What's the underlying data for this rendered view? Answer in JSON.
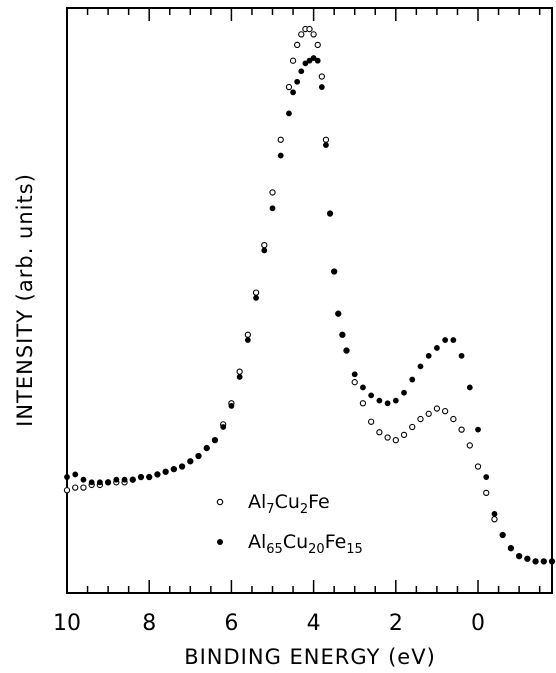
{
  "chart_data": {
    "type": "scatter",
    "xlabel": "BINDING ENERGY (eV)",
    "ylabel": "INTENSITY (arb. units)",
    "xlim": [
      10,
      -1.8
    ],
    "ylim": [
      -0.3,
      10.8
    ],
    "x_reversed": true,
    "grid": false,
    "legend_position": "bottom-center",
    "x_ticks": [
      "10",
      "8",
      "6",
      "4",
      "2",
      "0"
    ],
    "x_tick_values": [
      10,
      8,
      6,
      4,
      2,
      0
    ],
    "series": [
      {
        "name_main": [
          "Al",
          "Cu",
          "Fe"
        ],
        "name_subs": [
          "7",
          "2",
          ""
        ],
        "marker": "open-circle",
        "x": [
          10.0,
          9.8,
          9.6,
          9.4,
          9.2,
          9.0,
          8.8,
          8.6,
          8.4,
          8.2,
          8.0,
          7.8,
          7.6,
          7.4,
          7.2,
          7.0,
          6.8,
          6.6,
          6.4,
          6.2,
          6.0,
          5.8,
          5.6,
          5.4,
          5.2,
          5.0,
          4.8,
          4.6,
          4.5,
          4.4,
          4.3,
          4.2,
          4.1,
          4.0,
          3.9,
          3.8,
          3.7,
          3.6,
          3.5,
          3.4,
          3.3,
          3.2,
          3.0,
          2.8,
          2.6,
          2.4,
          2.2,
          2.0,
          1.8,
          1.6,
          1.4,
          1.2,
          1.0,
          0.8,
          0.6,
          0.4,
          0.2,
          0.0,
          -0.2,
          -0.4,
          -0.6,
          -0.8,
          -1.0,
          -1.2,
          -1.4,
          -1.6,
          -1.8
        ],
        "y": [
          1.65,
          1.7,
          1.7,
          1.75,
          1.75,
          1.8,
          1.8,
          1.8,
          1.85,
          1.9,
          1.9,
          1.95,
          2.0,
          2.05,
          2.1,
          2.2,
          2.3,
          2.45,
          2.6,
          2.9,
          3.3,
          3.9,
          4.6,
          5.4,
          6.3,
          7.3,
          8.3,
          9.3,
          9.8,
          10.1,
          10.3,
          10.4,
          10.4,
          10.3,
          10.1,
          9.5,
          8.3,
          6.9,
          5.8,
          5.0,
          4.6,
          4.3,
          3.7,
          3.3,
          2.95,
          2.75,
          2.65,
          2.6,
          2.7,
          2.85,
          3.0,
          3.1,
          3.2,
          3.15,
          3.0,
          2.8,
          2.5,
          2.1,
          1.6,
          1.1,
          0.8,
          0.55,
          0.4,
          0.35,
          0.3,
          0.3,
          0.3
        ]
      },
      {
        "name_main": [
          "Al",
          "Cu",
          "Fe"
        ],
        "name_subs": [
          "65",
          "20",
          "15"
        ],
        "marker": "filled-circle",
        "x": [
          10.0,
          9.8,
          9.6,
          9.4,
          9.2,
          9.0,
          8.8,
          8.6,
          8.4,
          8.2,
          8.0,
          7.8,
          7.6,
          7.4,
          7.2,
          7.0,
          6.8,
          6.6,
          6.4,
          6.2,
          6.0,
          5.8,
          5.6,
          5.4,
          5.2,
          5.0,
          4.8,
          4.6,
          4.5,
          4.4,
          4.3,
          4.2,
          4.1,
          4.0,
          3.9,
          3.8,
          3.7,
          3.6,
          3.5,
          3.4,
          3.3,
          3.2,
          3.0,
          2.8,
          2.6,
          2.4,
          2.2,
          2.0,
          1.8,
          1.6,
          1.4,
          1.2,
          1.0,
          0.8,
          0.6,
          0.4,
          0.2,
          0.0,
          -0.2,
          -0.4,
          -0.6,
          -0.8,
          -1.0,
          -1.2,
          -1.4,
          -1.6,
          -1.8
        ],
        "y": [
          1.9,
          1.95,
          1.85,
          1.8,
          1.8,
          1.8,
          1.85,
          1.85,
          1.85,
          1.9,
          1.9,
          1.95,
          2.0,
          2.05,
          2.1,
          2.2,
          2.3,
          2.45,
          2.6,
          2.85,
          3.25,
          3.8,
          4.5,
          5.3,
          6.2,
          7.0,
          8.0,
          8.8,
          9.2,
          9.4,
          9.6,
          9.75,
          9.8,
          9.85,
          9.8,
          9.3,
          8.2,
          6.9,
          5.8,
          5.0,
          4.6,
          4.3,
          3.85,
          3.6,
          3.45,
          3.35,
          3.3,
          3.35,
          3.5,
          3.75,
          4.0,
          4.2,
          4.35,
          4.5,
          4.5,
          4.2,
          3.6,
          2.8,
          1.9,
          1.2,
          0.8,
          0.55,
          0.4,
          0.35,
          0.3,
          0.3,
          0.3
        ]
      }
    ]
  }
}
